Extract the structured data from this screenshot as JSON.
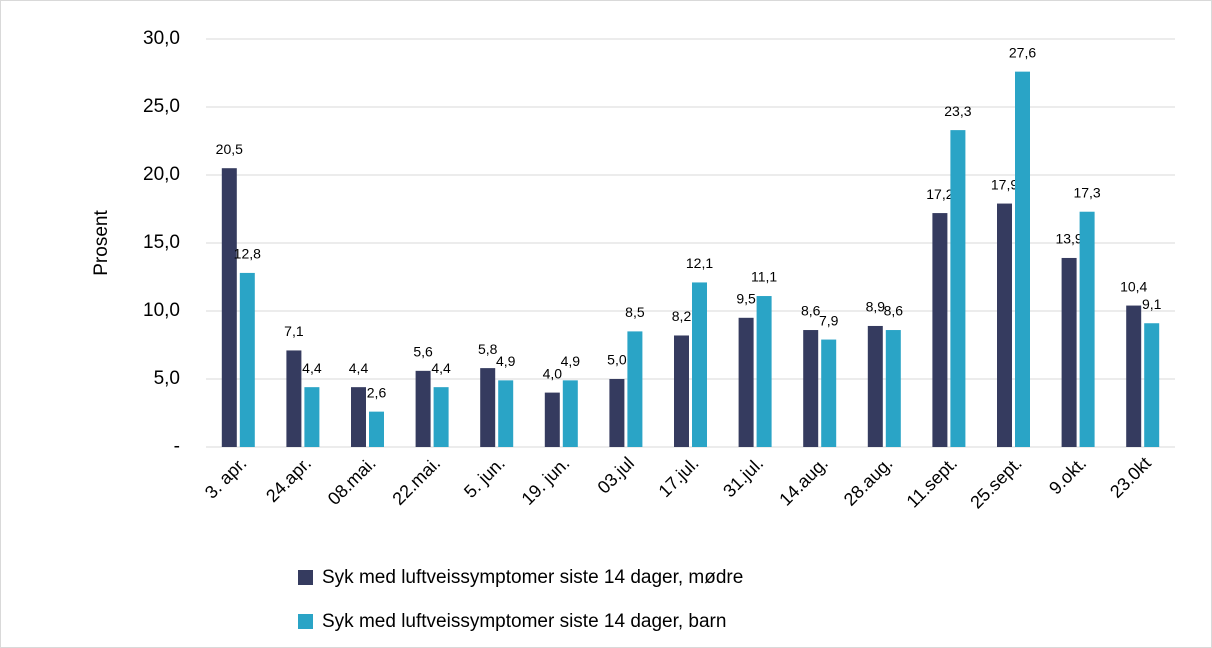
{
  "chart_data": {
    "type": "bar",
    "y_label": "Prosent",
    "categories": [
      "3. apr.",
      "24.apr.",
      "08.mai.",
      "22.mai.",
      "5. jun.",
      "19. jun.",
      "03.jul",
      "17.jul.",
      "31.jul.",
      "14.aug.",
      "28.aug.",
      "11.sept.",
      "25.sept.",
      "9.okt.",
      "23.0kt"
    ],
    "series": [
      {
        "name": "Syk med luftveissymptomer siste 14 dager, mødre",
        "color": "#353b5f",
        "values": [
          20.5,
          7.1,
          4.4,
          5.6,
          5.8,
          4.0,
          5.0,
          8.2,
          9.5,
          8.6,
          8.9,
          17.2,
          17.9,
          13.9,
          10.4
        ],
        "value_labels": [
          "20,5",
          "7,1",
          "4,4",
          "5,6",
          "5,8",
          "4,0",
          "5,0",
          "8,2",
          "9,5",
          "8,6",
          "8,9",
          "17,2",
          "17,9",
          "13,9",
          "10,4"
        ]
      },
      {
        "name": "Syk med luftveissymptomer siste 14 dager, barn",
        "color": "#2aa4c6",
        "values": [
          12.8,
          4.4,
          2.6,
          4.4,
          4.9,
          4.9,
          8.5,
          12.1,
          11.1,
          7.9,
          8.6,
          23.3,
          27.6,
          17.3,
          9.1
        ],
        "value_labels": [
          "12,8",
          "4,4",
          "2,6",
          "4,4",
          "4,9",
          "4,9",
          "8,5",
          "12,1",
          "11,1",
          "7,9",
          "8,6",
          "23,3",
          "27,6",
          "17,3",
          "9,1"
        ]
      }
    ],
    "ylim": [
      0,
      30
    ],
    "yticks": [
      {
        "value": 0,
        "label": "-"
      },
      {
        "value": 5,
        "label": "5,0"
      },
      {
        "value": 10,
        "label": "10,0"
      },
      {
        "value": 15,
        "label": "15,0"
      },
      {
        "value": 20,
        "label": "20,0"
      },
      {
        "value": 25,
        "label": "25,0"
      },
      {
        "value": 30,
        "label": "30,0"
      }
    ],
    "grid": true
  }
}
